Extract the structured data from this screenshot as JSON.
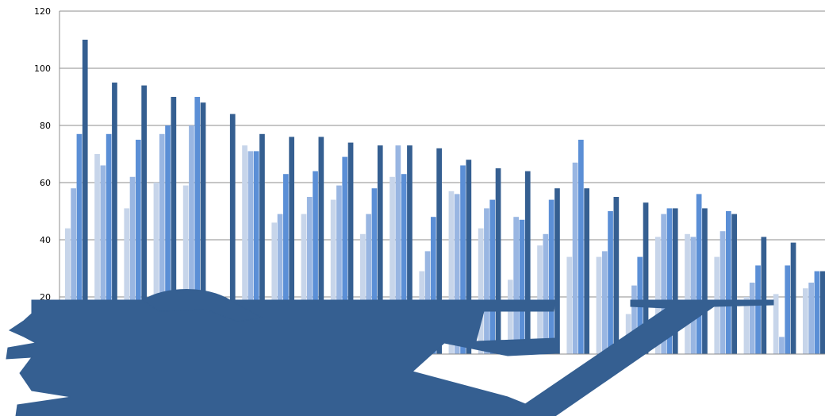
{
  "chart_data": {
    "type": "bar",
    "title": "",
    "xlabel": "",
    "ylabel": "",
    "ylim": [
      0,
      120
    ],
    "y_ticks": [
      "20",
      "40",
      "60",
      "80",
      "100",
      "120"
    ],
    "grid": true,
    "legend": "none",
    "colors": [
      "#c7d5ea",
      "#99b6e2",
      "#5b8fd6",
      "#355f91"
    ],
    "series": [
      {
        "values": [
          44,
          70,
          51,
          60,
          59,
          0,
          73,
          46,
          49,
          54,
          42,
          62,
          29,
          57,
          44,
          26,
          38,
          34,
          34,
          14,
          41,
          42,
          34,
          20,
          21,
          23
        ]
      },
      {
        "values": [
          58,
          66,
          62,
          77,
          80,
          0,
          71,
          49,
          55,
          59,
          49,
          73,
          36,
          56,
          51,
          48,
          42,
          67,
          36,
          24,
          49,
          41,
          43,
          25,
          6,
          25
        ]
      },
      {
        "values": [
          77,
          77,
          75,
          80,
          90,
          0,
          71,
          63,
          64,
          69,
          58,
          63,
          48,
          66,
          54,
          47,
          54,
          75,
          50,
          34,
          51,
          56,
          50,
          31,
          31,
          29
        ]
      },
      {
        "values": [
          110,
          95,
          94,
          90,
          88,
          84,
          77,
          76,
          76,
          74,
          73,
          73,
          72,
          68,
          65,
          64,
          58,
          58,
          55,
          53,
          51,
          51,
          49,
          41,
          39,
          29
        ]
      }
    ]
  }
}
